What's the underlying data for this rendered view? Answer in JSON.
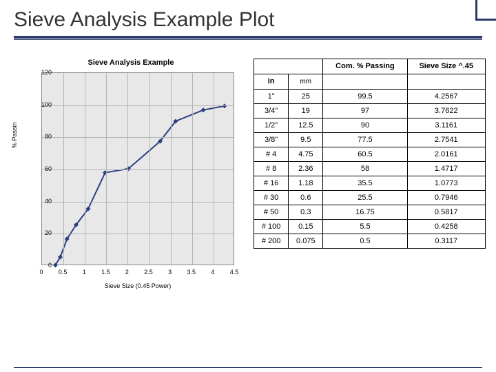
{
  "slide": {
    "title": "Sieve Analysis Example Plot"
  },
  "chart": {
    "type": "line",
    "title": "Sieve Analysis Example",
    "xlabel": "Sieve Size (0.45 Power)",
    "ylabel": "% Passin",
    "xlim": [
      0,
      4.5
    ],
    "ylim": [
      0,
      120
    ],
    "xticks": [
      0,
      0.5,
      1,
      1.5,
      2,
      2.5,
      3,
      3.5,
      4,
      4.5
    ],
    "xtick_labels": [
      "0",
      "0.5",
      "1",
      "1.5",
      "2",
      "2.5",
      "3",
      "3.5",
      "4",
      "4.5"
    ],
    "yticks": [
      0,
      20,
      40,
      60,
      80,
      100,
      120
    ],
    "ytick_labels": [
      "0",
      "20",
      "40",
      "60",
      "80",
      "100",
      "120"
    ],
    "line_color": "#2b3e80",
    "marker_shape": "diamond",
    "marker_color": "#2b3e80",
    "marker_size": 7,
    "line_width": 2,
    "background_color": "#e8e8e8",
    "grid_color": "#b5b5b5",
    "x": [
      0.3117,
      0.4258,
      0.5817,
      0.7946,
      1.0773,
      1.4717,
      2.0161,
      2.7541,
      3.1161,
      3.7622,
      4.2567
    ],
    "y": [
      0.5,
      5.5,
      16.75,
      25.5,
      35.5,
      58,
      60.5,
      77.5,
      90,
      97,
      99.5
    ]
  },
  "table": {
    "headers": {
      "col3": "Com. % Passing",
      "col4": "Sieve Size ^.45",
      "sub1": "in",
      "sub2": "mm"
    },
    "rows": [
      {
        "in": "1\"",
        "mm": "25",
        "pct": "99.5",
        "pow": "4.2567"
      },
      {
        "in": "3/4\"",
        "mm": "19",
        "pct": "97",
        "pow": "3.7622"
      },
      {
        "in": "1/2\"",
        "mm": "12.5",
        "pct": "90",
        "pow": "3.1161"
      },
      {
        "in": "3/8\"",
        "mm": "9.5",
        "pct": "77.5",
        "pow": "2.7541"
      },
      {
        "in": "# 4",
        "mm": "4.75",
        "pct": "60.5",
        "pow": "2.0161"
      },
      {
        "in": "# 8",
        "mm": "2.36",
        "pct": "58",
        "pow": "1.4717"
      },
      {
        "in": "# 16",
        "mm": "1.18",
        "pct": "35.5",
        "pow": "1.0773"
      },
      {
        "in": "# 30",
        "mm": "0.6",
        "pct": "25.5",
        "pow": "0.7946"
      },
      {
        "in": "# 50",
        "mm": "0.3",
        "pct": "16.75",
        "pow": "0.5817"
      },
      {
        "in": "# 100",
        "mm": "0.15",
        "pct": "5.5",
        "pow": "0.4258"
      },
      {
        "in": "# 200",
        "mm": "0.075",
        "pct": "0.5",
        "pow": "0.3117"
      }
    ]
  }
}
